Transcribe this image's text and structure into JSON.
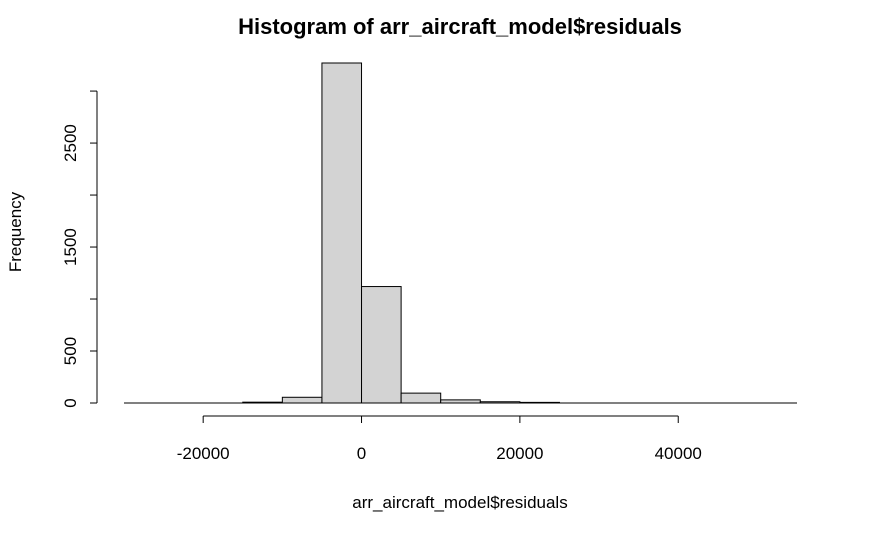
{
  "chart_data": {
    "type": "bar",
    "title": "Histogram of arr_aircraft_model$residuals",
    "xlabel": "arr_aircraft_model$residuals",
    "ylabel": "Frequency",
    "bin_edges": [
      -15000,
      -10000,
      -5000,
      0,
      5000,
      10000,
      15000,
      20000,
      25000
    ],
    "values": [
      8,
      55,
      3270,
      1120,
      95,
      30,
      12,
      6
    ],
    "xticks": [
      -20000,
      0,
      20000,
      40000
    ],
    "xtick_labels": [
      "-20000",
      "0",
      "20000",
      "40000"
    ],
    "yticks": [
      0,
      500,
      1500,
      2500
    ],
    "ytick_labels": [
      "0",
      "500",
      "1500",
      "2500"
    ],
    "yaxis_extent": [
      0,
      3000
    ],
    "xaxis_extent": [
      -20000,
      40000
    ],
    "ylim": [
      0,
      3270
    ],
    "xlim": [
      -30000,
      55000
    ],
    "grid": false,
    "bar_color": "#d3d3d3"
  }
}
